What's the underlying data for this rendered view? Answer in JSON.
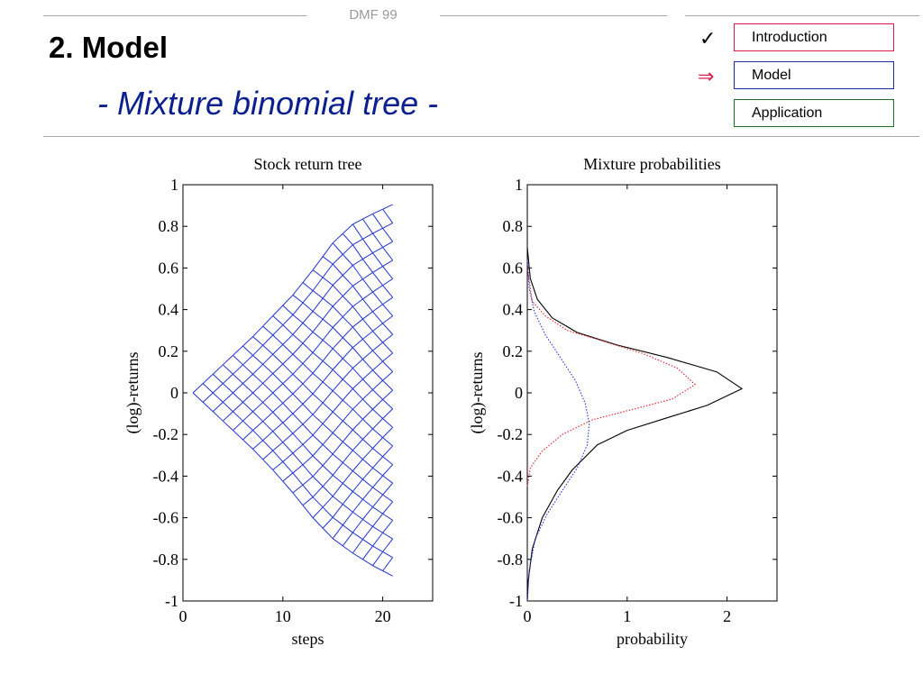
{
  "header": {
    "label": "DMF 99",
    "title": "2. Model",
    "subtitle": "- Mixture binomial tree -"
  },
  "nav": {
    "items": [
      {
        "label": "Introduction",
        "border_color": "#d81b4a",
        "mark": "✓"
      },
      {
        "label": "Model",
        "border_color": "#1a2a9e",
        "mark": "⇒"
      },
      {
        "label": "Application",
        "border_color": "#1e6b2a",
        "mark": ""
      }
    ]
  },
  "colors": {
    "tree": "#2233cc",
    "mixture_total": "#000000",
    "component_red": "#e0202a",
    "component_blue": "#2233dd"
  },
  "chart_data": [
    {
      "type": "line",
      "title": "Stock return tree",
      "xlabel": "steps",
      "ylabel": "(log)-returns",
      "xlim": [
        0,
        25
      ],
      "ylim": [
        -1,
        1
      ],
      "xticks": [
        "0",
        "10",
        "20"
      ],
      "yticks": [
        "-1",
        "-0.8",
        "-0.6",
        "-0.4",
        "-0.2",
        "0",
        "0.2",
        "0.4",
        "0.6",
        "0.8",
        "1"
      ],
      "grid": false,
      "tree": {
        "steps": 20,
        "start_step": 1,
        "end_step": 21,
        "start_value": 0,
        "upper_envelope": [
          [
            1,
            0
          ],
          [
            3,
            0.09
          ],
          [
            5,
            0.18
          ],
          [
            7,
            0.27
          ],
          [
            9,
            0.37
          ],
          [
            11,
            0.47
          ],
          [
            13,
            0.59
          ],
          [
            15,
            0.72
          ],
          [
            17,
            0.81
          ],
          [
            19,
            0.86
          ],
          [
            21,
            0.905
          ]
        ],
        "lower_envelope": [
          [
            1,
            0
          ],
          [
            3,
            -0.09
          ],
          [
            5,
            -0.18
          ],
          [
            7,
            -0.27
          ],
          [
            9,
            -0.37
          ],
          [
            11,
            -0.48
          ],
          [
            13,
            -0.6
          ],
          [
            15,
            -0.7
          ],
          [
            17,
            -0.77
          ],
          [
            19,
            -0.83
          ],
          [
            21,
            -0.88
          ]
        ]
      }
    },
    {
      "type": "line",
      "title": "Mixture probabilities",
      "xlabel": "probability",
      "ylabel": "(log)-returns",
      "xlim": [
        0,
        2.5
      ],
      "ylim": [
        -1,
        1
      ],
      "xticks": [
        "0",
        "1",
        "2"
      ],
      "yticks": [
        "-1",
        "-0.8",
        "-0.6",
        "-0.4",
        "-0.2",
        "0",
        "0.2",
        "0.4",
        "0.6",
        "0.8",
        "1"
      ],
      "grid": false,
      "series": [
        {
          "style": "solid",
          "color": "#000000",
          "points": [
            [
              0,
              -1
            ],
            [
              0.01,
              -0.9
            ],
            [
              0.05,
              -0.75
            ],
            [
              0.15,
              -0.6
            ],
            [
              0.3,
              -0.47
            ],
            [
              0.45,
              -0.37
            ],
            [
              0.7,
              -0.25
            ],
            [
              1.0,
              -0.18
            ],
            [
              1.4,
              -0.12
            ],
            [
              1.8,
              -0.06
            ],
            [
              2.15,
              0.02
            ],
            [
              1.9,
              0.1
            ],
            [
              1.4,
              0.17
            ],
            [
              0.9,
              0.23
            ],
            [
              0.5,
              0.29
            ],
            [
              0.25,
              0.36
            ],
            [
              0.1,
              0.45
            ],
            [
              0.03,
              0.55
            ],
            [
              0,
              0.7
            ]
          ]
        },
        {
          "style": "dotted",
          "color": "#e0202a",
          "points": [
            [
              0,
              -0.45
            ],
            [
              0.03,
              -0.36
            ],
            [
              0.15,
              -0.28
            ],
            [
              0.35,
              -0.2
            ],
            [
              0.65,
              -0.13
            ],
            [
              1.05,
              -0.08
            ],
            [
              1.45,
              -0.03
            ],
            [
              1.68,
              0.04
            ],
            [
              1.5,
              0.12
            ],
            [
              1.15,
              0.19
            ],
            [
              0.75,
              0.25
            ],
            [
              0.4,
              0.3
            ],
            [
              0.18,
              0.37
            ],
            [
              0.05,
              0.44
            ],
            [
              0,
              0.6
            ]
          ]
        },
        {
          "style": "dotted",
          "color": "#2233dd",
          "points": [
            [
              0,
              -1
            ],
            [
              0.02,
              -0.85
            ],
            [
              0.08,
              -0.7
            ],
            [
              0.2,
              -0.58
            ],
            [
              0.35,
              -0.47
            ],
            [
              0.5,
              -0.36
            ],
            [
              0.6,
              -0.25
            ],
            [
              0.62,
              -0.15
            ],
            [
              0.58,
              -0.05
            ],
            [
              0.48,
              0.06
            ],
            [
              0.33,
              0.17
            ],
            [
              0.18,
              0.28
            ],
            [
              0.07,
              0.39
            ],
            [
              0.02,
              0.5
            ],
            [
              0,
              0.65
            ]
          ]
        }
      ]
    }
  ]
}
